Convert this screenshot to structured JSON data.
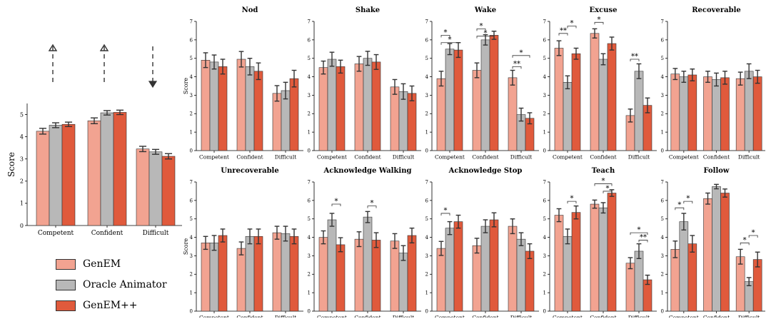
{
  "colors": {
    "GenEM": "#f2a391",
    "Oracle Animator": "#b8b8b8",
    "GenEM++": "#e05a3c"
  },
  "legend": [
    {
      "name": "GenEM",
      "color": "#f2a391"
    },
    {
      "name": "Oracle Animator",
      "color": "#b8b8b8"
    },
    {
      "name": "GenEM++",
      "color": "#e05a3c"
    }
  ],
  "chart_data": [
    {
      "type": "bar",
      "title": "",
      "ylabel": "Score",
      "ylim": [
        0,
        5.5
      ],
      "yticks": [
        0,
        1,
        2,
        3,
        4,
        5
      ],
      "categories": [
        "Competent",
        "Confident",
        "Difficult"
      ],
      "arrows": [
        "up",
        "up",
        "down"
      ],
      "series": [
        {
          "name": "GenEM",
          "values": [
            4.25,
            4.72,
            3.45
          ],
          "err": [
            0.13,
            0.13,
            0.12
          ]
        },
        {
          "name": "Oracle Animator",
          "values": [
            4.52,
            5.08,
            3.32
          ],
          "err": [
            0.11,
            0.1,
            0.11
          ]
        },
        {
          "name": "GenEM++",
          "values": [
            4.56,
            5.1,
            3.12
          ],
          "err": [
            0.1,
            0.1,
            0.12
          ]
        }
      ]
    },
    {
      "type": "bar",
      "title": "Nod",
      "ylabel": "Score",
      "ylim": [
        0,
        7
      ],
      "categories": [
        "Competent",
        "Confident",
        "Difficult"
      ],
      "series": [
        {
          "name": "GenEM",
          "values": [
            4.9,
            4.95,
            3.1
          ],
          "err": [
            0.4,
            0.42,
            0.42
          ]
        },
        {
          "name": "Oracle Animator",
          "values": [
            4.8,
            4.55,
            3.25
          ],
          "err": [
            0.38,
            0.45,
            0.45
          ]
        },
        {
          "name": "GenEM++",
          "values": [
            4.55,
            4.3,
            3.9
          ],
          "err": [
            0.4,
            0.45,
            0.45
          ]
        }
      ],
      "sig": []
    },
    {
      "type": "bar",
      "title": "Shake",
      "ylabel": "",
      "ylim": [
        0,
        7
      ],
      "categories": [
        "Competent",
        "Confident",
        "Difficult"
      ],
      "series": [
        {
          "name": "GenEM",
          "values": [
            4.5,
            4.7,
            3.45
          ],
          "err": [
            0.35,
            0.4,
            0.4
          ]
        },
        {
          "name": "Oracle Animator",
          "values": [
            4.95,
            5.0,
            3.2
          ],
          "err": [
            0.38,
            0.38,
            0.42
          ]
        },
        {
          "name": "GenEM++",
          "values": [
            4.55,
            4.8,
            3.1
          ],
          "err": [
            0.35,
            0.4,
            0.4
          ]
        }
      ],
      "sig": []
    },
    {
      "type": "bar",
      "title": "Wake",
      "ylabel": "",
      "ylim": [
        0,
        7
      ],
      "categories": [
        "Competent",
        "Confident",
        "Difficult"
      ],
      "series": [
        {
          "name": "GenEM",
          "values": [
            3.9,
            4.35,
            3.95
          ],
          "err": [
            0.4,
            0.4,
            0.4
          ]
        },
        {
          "name": "Oracle Animator",
          "values": [
            5.5,
            6.0,
            1.95
          ],
          "err": [
            0.3,
            0.28,
            0.35
          ]
        },
        {
          "name": "GenEM++",
          "values": [
            5.45,
            6.25,
            1.75
          ],
          "err": [
            0.4,
            0.22,
            0.3
          ]
        }
      ],
      "sig": [
        {
          "cat": 0,
          "a": 0,
          "b": 1,
          "y": 6.25,
          "label": "*"
        },
        {
          "cat": 0,
          "a": 0,
          "b": 2,
          "y": 5.85,
          "label": "*"
        },
        {
          "cat": 1,
          "a": 0,
          "b": 1,
          "y": 6.6,
          "label": "*"
        },
        {
          "cat": 1,
          "a": 0,
          "b": 2,
          "y": 6.2,
          "label": "*"
        },
        {
          "cat": 2,
          "a": 0,
          "b": 2,
          "y": 5.15,
          "label": "*"
        },
        {
          "cat": 2,
          "a": 0,
          "b": 1,
          "y": 4.55,
          "label": "**"
        }
      ]
    },
    {
      "type": "bar",
      "title": "Excuse",
      "ylabel": "",
      "ylim": [
        0,
        7
      ],
      "categories": [
        "Competent",
        "Confident",
        "Difficult"
      ],
      "series": [
        {
          "name": "GenEM",
          "values": [
            5.55,
            6.35,
            1.9
          ],
          "err": [
            0.4,
            0.25,
            0.35
          ]
        },
        {
          "name": "Oracle Animator",
          "values": [
            3.7,
            4.95,
            4.3
          ],
          "err": [
            0.35,
            0.3,
            0.4
          ]
        },
        {
          "name": "GenEM++",
          "values": [
            5.25,
            5.8,
            2.45
          ],
          "err": [
            0.3,
            0.35,
            0.4
          ]
        }
      ],
      "sig": [
        {
          "cat": 0,
          "a": 0,
          "b": 1,
          "y": 6.35,
          "label": "**"
        },
        {
          "cat": 0,
          "a": 1,
          "b": 2,
          "y": 6.75,
          "label": "*"
        },
        {
          "cat": 1,
          "a": 0,
          "b": 1,
          "y": 6.95,
          "label": "*"
        },
        {
          "cat": 2,
          "a": 0,
          "b": 1,
          "y": 4.95,
          "label": "**"
        }
      ]
    },
    {
      "type": "bar",
      "title": "Recoverable",
      "ylabel": "",
      "ylim": [
        0,
        7
      ],
      "categories": [
        "Competent",
        "Confident",
        "Difficult"
      ],
      "series": [
        {
          "name": "GenEM",
          "values": [
            4.15,
            4.0,
            3.9
          ],
          "err": [
            0.3,
            0.3,
            0.35
          ]
        },
        {
          "name": "Oracle Animator",
          "values": [
            4.0,
            3.85,
            4.3
          ],
          "err": [
            0.3,
            0.35,
            0.4
          ]
        },
        {
          "name": "GenEM++",
          "values": [
            4.1,
            3.95,
            4.0
          ],
          "err": [
            0.32,
            0.35,
            0.35
          ]
        }
      ],
      "sig": []
    },
    {
      "type": "bar",
      "title": "Unrecoverable",
      "ylabel": "Score",
      "ylim": [
        0,
        7
      ],
      "categories": [
        "Competent",
        "Confident",
        "Difficult"
      ],
      "series": [
        {
          "name": "GenEM",
          "values": [
            3.7,
            3.4,
            4.25
          ],
          "err": [
            0.35,
            0.35,
            0.35
          ]
        },
        {
          "name": "Oracle Animator",
          "values": [
            3.7,
            4.05,
            4.2
          ],
          "err": [
            0.4,
            0.4,
            0.4
          ]
        },
        {
          "name": "GenEM++",
          "values": [
            4.1,
            4.05,
            4.05
          ],
          "err": [
            0.35,
            0.4,
            0.4
          ]
        }
      ],
      "sig": []
    },
    {
      "type": "bar",
      "title": "Acknowledge Walking",
      "ylabel": "",
      "ylim": [
        0,
        7
      ],
      "categories": [
        "Competent",
        "Confident",
        "Difficult"
      ],
      "series": [
        {
          "name": "GenEM",
          "values": [
            4.0,
            3.9,
            3.8
          ],
          "err": [
            0.35,
            0.4,
            0.4
          ]
        },
        {
          "name": "Oracle Animator",
          "values": [
            4.95,
            5.1,
            3.15
          ],
          "err": [
            0.35,
            0.3,
            0.4
          ]
        },
        {
          "name": "GenEM++",
          "values": [
            3.6,
            3.85,
            4.1
          ],
          "err": [
            0.38,
            0.4,
            0.4
          ]
        }
      ],
      "sig": [
        {
          "cat": 0,
          "a": 1,
          "b": 2,
          "y": 5.8,
          "label": "*"
        },
        {
          "cat": 1,
          "a": 1,
          "b": 2,
          "y": 5.7,
          "label": "*"
        }
      ]
    },
    {
      "type": "bar",
      "title": "Acknowledge Stop",
      "ylabel": "",
      "ylim": [
        0,
        7
      ],
      "categories": [
        "Competent",
        "Confident",
        "Difficult"
      ],
      "series": [
        {
          "name": "GenEM",
          "values": [
            3.4,
            3.55,
            4.6
          ],
          "err": [
            0.38,
            0.4,
            0.4
          ]
        },
        {
          "name": "Oracle Animator",
          "values": [
            4.5,
            4.6,
            3.9
          ],
          "err": [
            0.35,
            0.35,
            0.35
          ]
        },
        {
          "name": "GenEM++",
          "values": [
            4.85,
            4.95,
            3.25
          ],
          "err": [
            0.35,
            0.38,
            0.4
          ]
        }
      ],
      "sig": [
        {
          "cat": 0,
          "a": 0,
          "b": 1,
          "y": 5.3,
          "label": "*"
        }
      ]
    },
    {
      "type": "bar",
      "title": "Teach",
      "ylabel": "",
      "ylim": [
        0,
        7
      ],
      "categories": [
        "Competent",
        "Confident",
        "Difficult"
      ],
      "series": [
        {
          "name": "GenEM",
          "values": [
            5.2,
            5.8,
            2.6
          ],
          "err": [
            0.35,
            0.22,
            0.3
          ]
        },
        {
          "name": "Oracle Animator",
          "values": [
            4.05,
            5.6,
            3.25
          ],
          "err": [
            0.4,
            0.28,
            0.4
          ]
        },
        {
          "name": "GenEM++",
          "values": [
            5.35,
            6.4,
            1.7
          ],
          "err": [
            0.35,
            0.18,
            0.25
          ]
        }
      ],
      "sig": [
        {
          "cat": 0,
          "a": 1,
          "b": 2,
          "y": 5.95,
          "label": "*"
        },
        {
          "cat": 1,
          "a": 0,
          "b": 2,
          "y": 6.9,
          "label": "*"
        },
        {
          "cat": 1,
          "a": 1,
          "b": 2,
          "y": 6.5,
          "label": "*"
        },
        {
          "cat": 2,
          "a": 0,
          "b": 2,
          "y": 4.25,
          "label": "*"
        },
        {
          "cat": 2,
          "a": 1,
          "b": 2,
          "y": 3.85,
          "label": "**"
        }
      ]
    },
    {
      "type": "bar",
      "title": "Follow",
      "ylabel": "",
      "ylim": [
        0,
        7
      ],
      "categories": [
        "Competent",
        "Confident",
        "Difficult"
      ],
      "series": [
        {
          "name": "GenEM",
          "values": [
            3.35,
            6.1,
            2.95
          ],
          "err": [
            0.45,
            0.3,
            0.4
          ]
        },
        {
          "name": "Oracle Animator",
          "values": [
            4.85,
            6.75,
            1.6
          ],
          "err": [
            0.45,
            0.12,
            0.22
          ]
        },
        {
          "name": "GenEM++",
          "values": [
            3.65,
            6.4,
            2.8
          ],
          "err": [
            0.45,
            0.22,
            0.4
          ]
        }
      ],
      "sig": [
        {
          "cat": 0,
          "a": 0,
          "b": 1,
          "y": 5.6,
          "label": "*"
        },
        {
          "cat": 0,
          "a": 1,
          "b": 2,
          "y": 5.95,
          "label": "*"
        },
        {
          "cat": 2,
          "a": 0,
          "b": 1,
          "y": 3.7,
          "label": "*"
        },
        {
          "cat": 2,
          "a": 1,
          "b": 2,
          "y": 4.1,
          "label": "*"
        }
      ]
    }
  ]
}
